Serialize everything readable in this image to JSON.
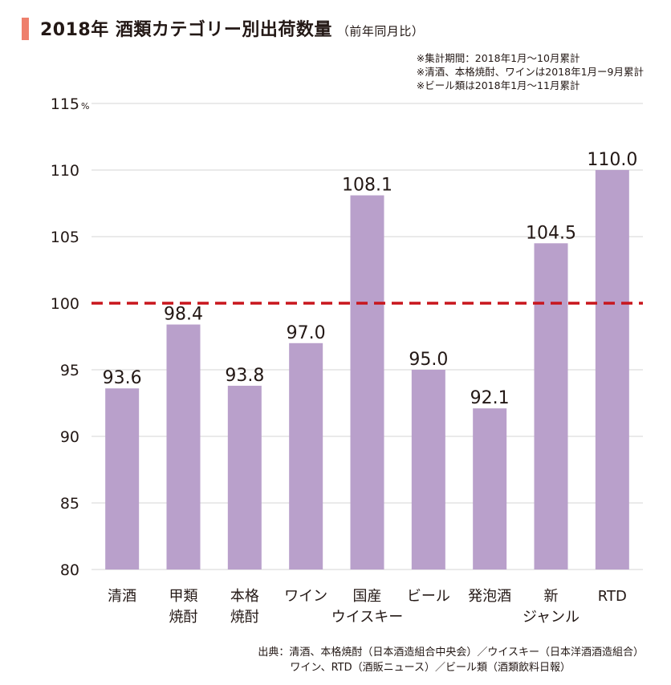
{
  "header": {
    "title": "2018年 酒類カテゴリー別出荷数量",
    "subtitle": "（前年同月比）",
    "accent_color": "#EE7F6C"
  },
  "notes": [
    "※集計期間：2018年1月〜10月累計",
    "※清酒、本格焼酎、ワインは2018年1月ー9月累計",
    "※ビール類は2018年1月〜11月累計"
  ],
  "source": {
    "line1": "出典：清酒、本格焼酎（日本酒造組合中央会）／ウイスキー（日本洋酒酒造組合）",
    "line2": "ワイン、RTD（酒販ニュース）／ビール類（酒類飲料日報）"
  },
  "chart_data": {
    "type": "bar",
    "categories": [
      [
        "清酒"
      ],
      [
        "甲類",
        "焼酎"
      ],
      [
        "本格",
        "焼酎"
      ],
      [
        "ワイン"
      ],
      [
        "国産",
        "ウイスキー"
      ],
      [
        "ビール"
      ],
      [
        "発泡酒"
      ],
      [
        "新",
        "ジャンル"
      ],
      [
        "RTD"
      ]
    ],
    "values": [
      93.6,
      98.4,
      93.8,
      97.0,
      108.1,
      95.0,
      92.1,
      104.5,
      110.0
    ],
    "data_labels": [
      "93.6",
      "98.4",
      "93.8",
      "97.0",
      "108.1",
      "95.0",
      "92.1",
      "104.5",
      "110.0"
    ],
    "ylim": [
      80,
      115
    ],
    "yticks": [
      "80",
      "85",
      "90",
      "95",
      "100",
      "105",
      "110",
      "115"
    ],
    "y_unit": "%",
    "reference_line": 100,
    "grid": true,
    "bar_color": "#B9A0CB",
    "reference_color": "#C8161D"
  }
}
